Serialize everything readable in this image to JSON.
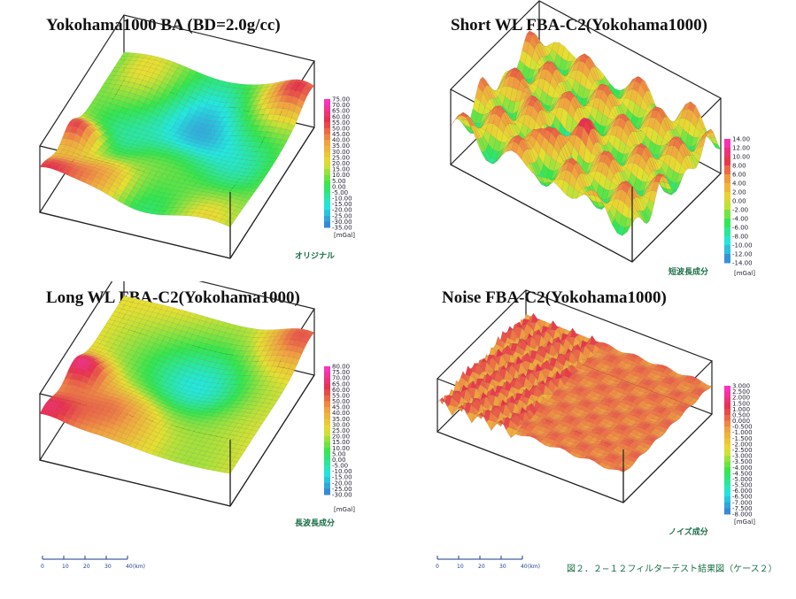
{
  "figure_caption": "図２．２−１２フィルターテスト結果図（ケース２）",
  "colors": {
    "magenta": "#ff33cc",
    "red": "#e8304c",
    "orange": "#f2a040",
    "yellow": "#e6e030",
    "green": "#33e64c",
    "cyan": "#22e8e0",
    "blue": "#3a7ad8",
    "caption_green": "#1a6e46"
  },
  "scale_bar": {
    "ticks": [
      "0",
      "10",
      "20",
      "30",
      "40"
    ],
    "unit": "(km)"
  },
  "chart_data": [
    {
      "type": "surface3d",
      "title": "Yokohama1000 BA (BD=2.0g/cc)",
      "caption": "オリジナル",
      "unit": "[mGal]",
      "colorbar": [
        "75.00",
        "70.00",
        "65.00",
        "60.00",
        "55.00",
        "50.00",
        "45.00",
        "40.00",
        "35.00",
        "30.00",
        "25.00",
        "20.00",
        "15.00",
        "10.00",
        "5.00",
        "0.00",
        "-5.00",
        "-10.00",
        "-15.00",
        "-20.00",
        "-25.00",
        "-30.00",
        "-35.00"
      ],
      "zrange": [
        -35,
        75
      ]
    },
    {
      "type": "surface3d",
      "title": "Short WL FBA-C2(Yokohama1000)",
      "caption": "短波長成分",
      "unit": "[mGal]",
      "colorbar": [
        "14.00",
        "12.00",
        "10.00",
        "8.00",
        "6.00",
        "4.00",
        "2.00",
        "0.00",
        "-2.00",
        "-4.00",
        "-6.00",
        "-8.00",
        "-10.00",
        "-12.00",
        "-14.00"
      ],
      "zrange": [
        -14,
        14
      ]
    },
    {
      "type": "surface3d",
      "title": "Long WL FBA-C2(Yokohama1000)",
      "caption": "長波長成分",
      "unit": "[mGal]",
      "colorbar": [
        "80.00",
        "75.00",
        "70.00",
        "65.00",
        "60.00",
        "55.00",
        "50.00",
        "45.00",
        "40.00",
        "35.00",
        "30.00",
        "25.00",
        "20.00",
        "15.00",
        "10.00",
        "5.00",
        "0.00",
        "-5.00",
        "-10.00",
        "-15.00",
        "-20.00",
        "-25.00",
        "-30.00"
      ],
      "zrange": [
        -30,
        80
      ]
    },
    {
      "type": "surface3d",
      "title": "Noise FBA-C2(Yokohama1000)",
      "caption": "ノイズ成分",
      "unit": "[mGal]",
      "colorbar": [
        "3.000",
        "2.500",
        "2.000",
        "1.500",
        "1.000",
        "0.500",
        "0.000",
        "-0.500",
        "-1.000",
        "-1.500",
        "-2.000",
        "-2.500",
        "-3.000",
        "-3.500",
        "-4.000",
        "-4.500",
        "-5.000",
        "-5.500",
        "-6.000",
        "-6.500",
        "-7.000",
        "-7.500",
        "-8.000"
      ],
      "zrange": [
        -8,
        3
      ]
    }
  ]
}
